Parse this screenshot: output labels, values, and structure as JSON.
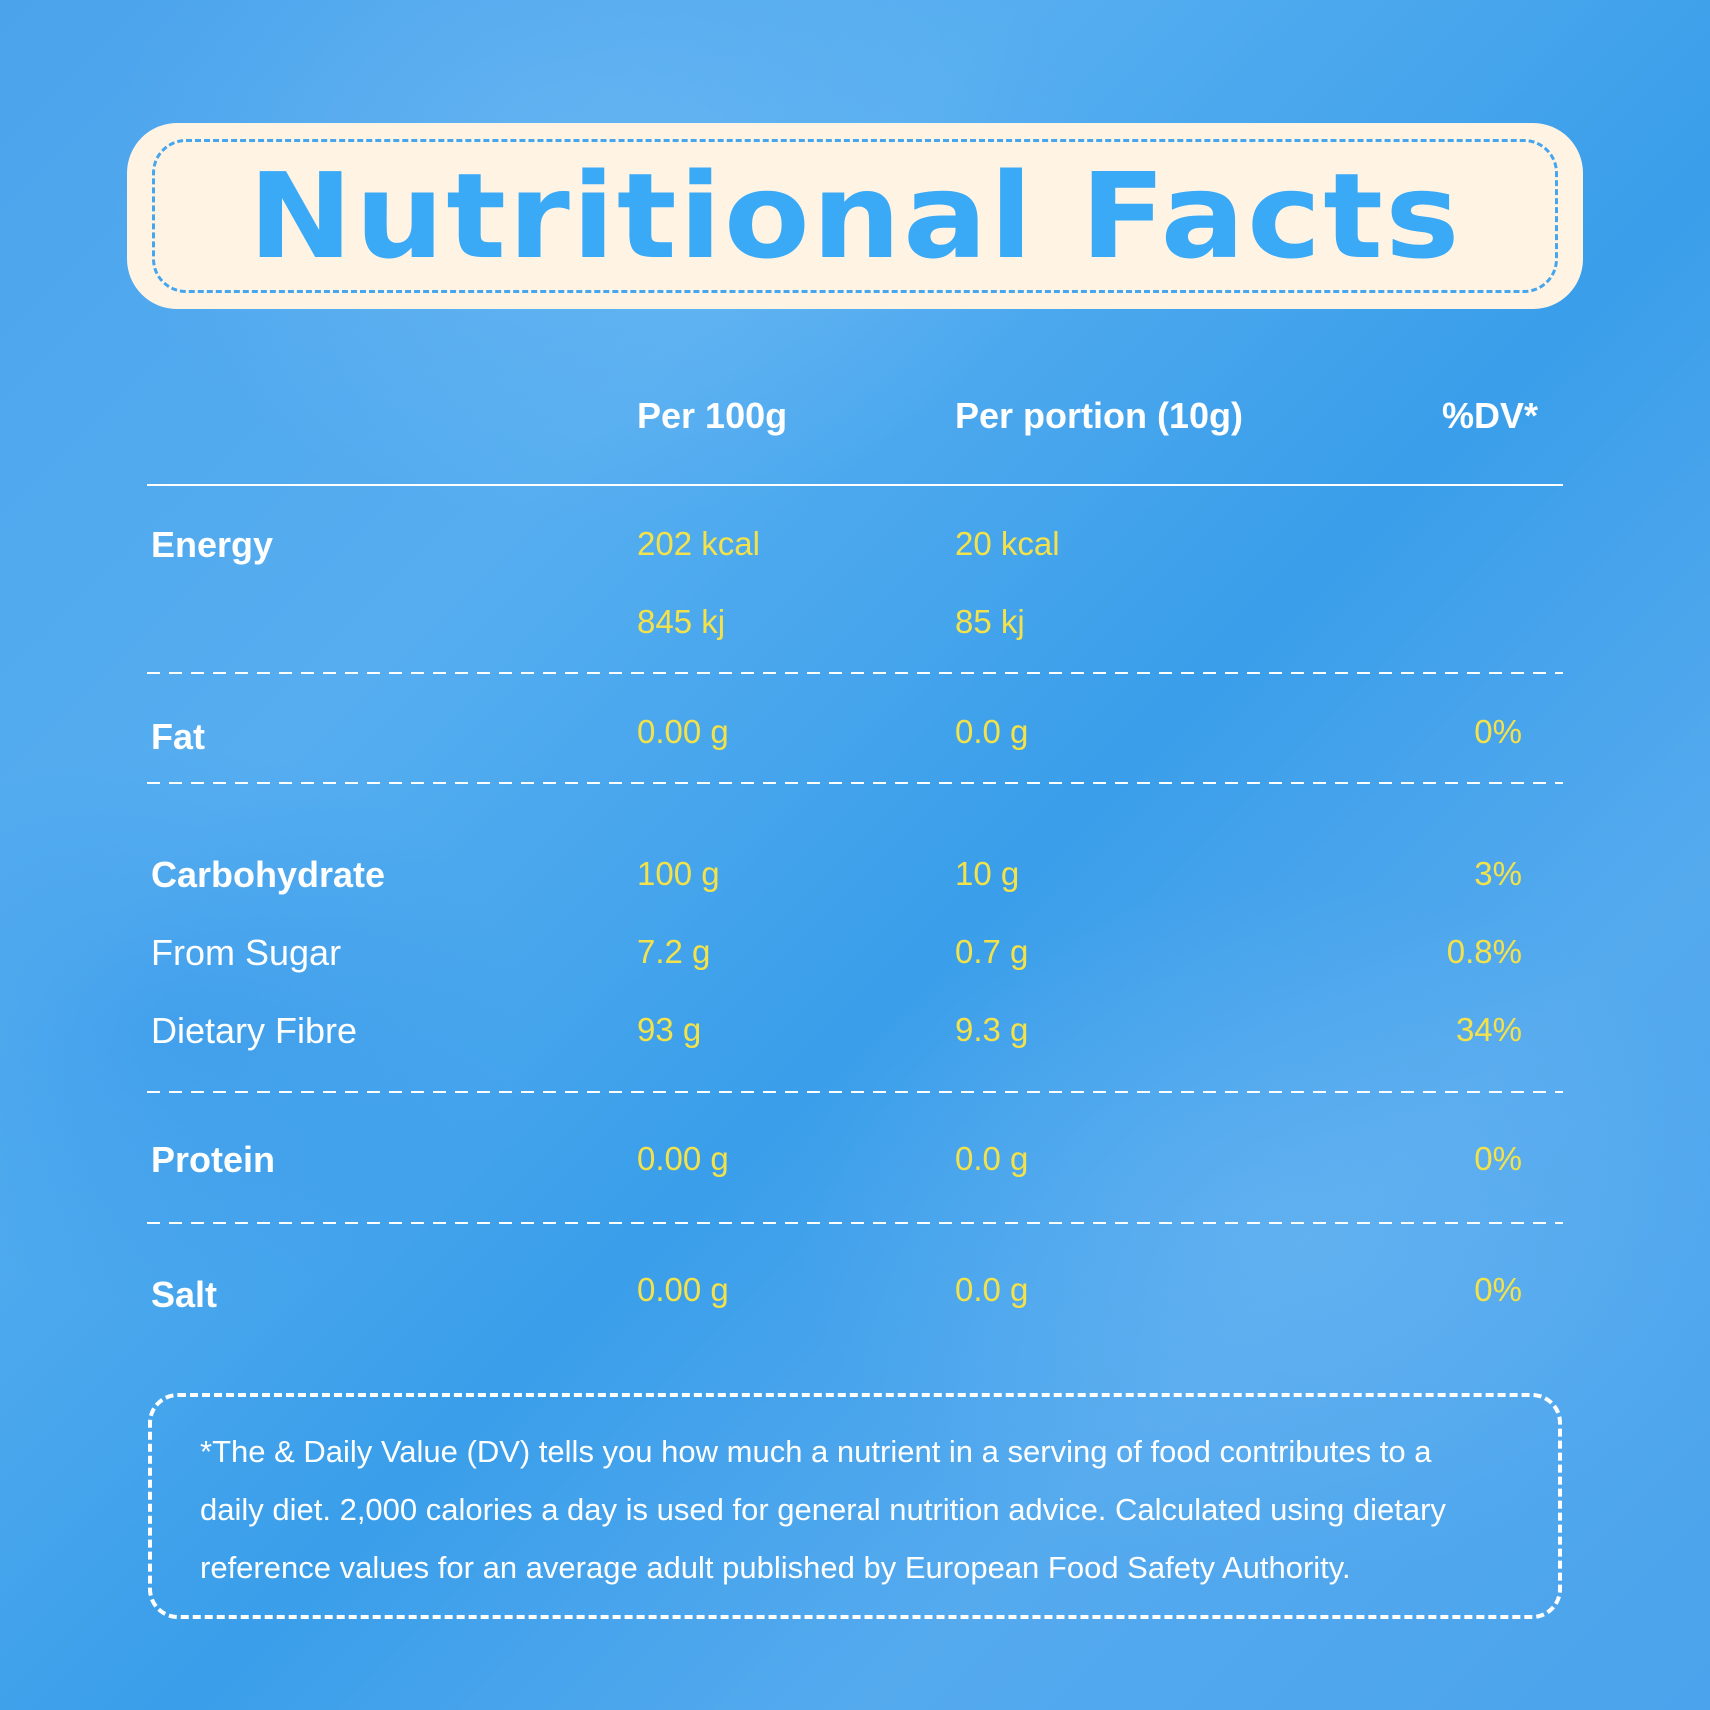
{
  "title": "Nutritional Facts",
  "columns": {
    "per100": "Per 100g",
    "portion": "Per portion (10g)",
    "dv": "%DV*"
  },
  "rows": {
    "energy": {
      "label": "Energy",
      "per100_kcal": "202 kcal",
      "portion_kcal": "20 kcal",
      "per100_kj": "845 kj",
      "portion_kj": "85 kj"
    },
    "fat": {
      "label": "Fat",
      "per100": "0.00 g",
      "portion": "0.0 g",
      "dv": "0%"
    },
    "carbohydrate": {
      "label": "Carbohydrate",
      "per100": "100 g",
      "portion": "10 g",
      "dv": "3%"
    },
    "sugar": {
      "label": "From Sugar",
      "per100": "7.2 g",
      "portion": "0.7 g",
      "dv": "0.8%"
    },
    "fibre": {
      "label": "Dietary Fibre",
      "per100": "93 g",
      "portion": "9.3 g",
      "dv": "34%"
    },
    "protein": {
      "label": "Protein",
      "per100": "0.00 g",
      "portion": "0.0 g",
      "dv": "0%"
    },
    "salt": {
      "label": "Salt",
      "per100": "0.00 g",
      "portion": "0.0 g",
      "dv": "0%"
    }
  },
  "footnote": {
    "line1": "*The & Daily Value (DV) tells you how much a nutrient in a serving of food  contributes to a",
    "line2": "daily diet. 2,000 calories a day is used for general nutrition advice. Calculated using dietary",
    "line3": "reference values for an average adult published by European Food Safety Authority."
  },
  "colors": {
    "background": "#3fa2ec",
    "title_text": "#3aa9f6",
    "banner": "#fff4e4",
    "value_text": "#f3e24a",
    "label_text": "#ffffff"
  }
}
